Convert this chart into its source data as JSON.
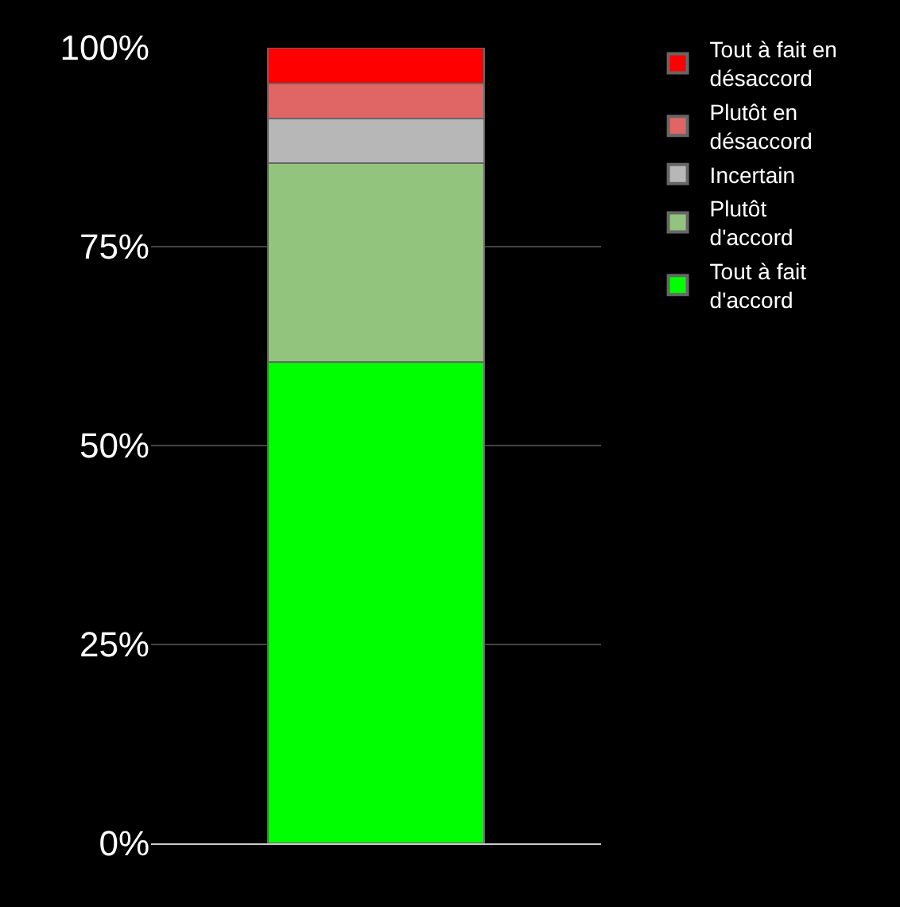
{
  "chart_data": {
    "type": "bar",
    "stacked": true,
    "categories": [
      null
    ],
    "series": [
      {
        "name": "Tout à fait d'accord",
        "color": "#00ff00",
        "values": [
          60.5
        ]
      },
      {
        "name": "Plutôt d'accord",
        "color": "#93c47d",
        "values": [
          25
        ]
      },
      {
        "name": "Incertain",
        "color": "#b7b7b7",
        "values": [
          5.6
        ]
      },
      {
        "name": "Plutôt en désaccord",
        "color": "#e06666",
        "values": [
          4.4
        ]
      },
      {
        "name": "Tout à fait en désaccord",
        "color": "#ff0000",
        "values": [
          4.5
        ]
      }
    ],
    "ylim": [
      0,
      100
    ],
    "yticks": [
      {
        "value": 0,
        "label": "0%"
      },
      {
        "value": 25,
        "label": "25%"
      },
      {
        "value": 50,
        "label": "50%"
      },
      {
        "value": 75,
        "label": "75%"
      },
      {
        "value": 100,
        "label": "100%"
      }
    ],
    "grid": "y",
    "legend": "top right",
    "tick_labels": "y"
  }
}
